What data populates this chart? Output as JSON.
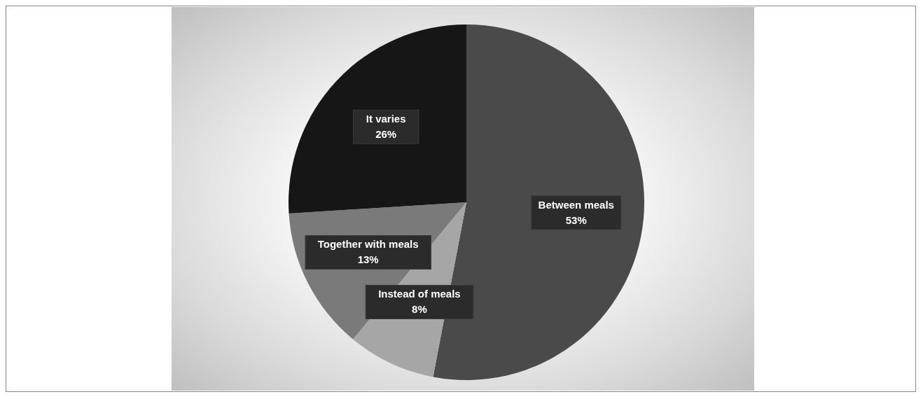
{
  "chart_data": {
    "type": "pie",
    "categories": [
      "Between meals",
      "Instead of meals",
      "Together with meals",
      "It varies"
    ],
    "values": [
      53,
      8,
      13,
      26
    ],
    "colors": [
      "#4a4a4a",
      "#a6a6a6",
      "#7a7a7a",
      "#161616"
    ],
    "value_labels": [
      "53%",
      "8%",
      "13%",
      "26%"
    ],
    "legend": false
  }
}
